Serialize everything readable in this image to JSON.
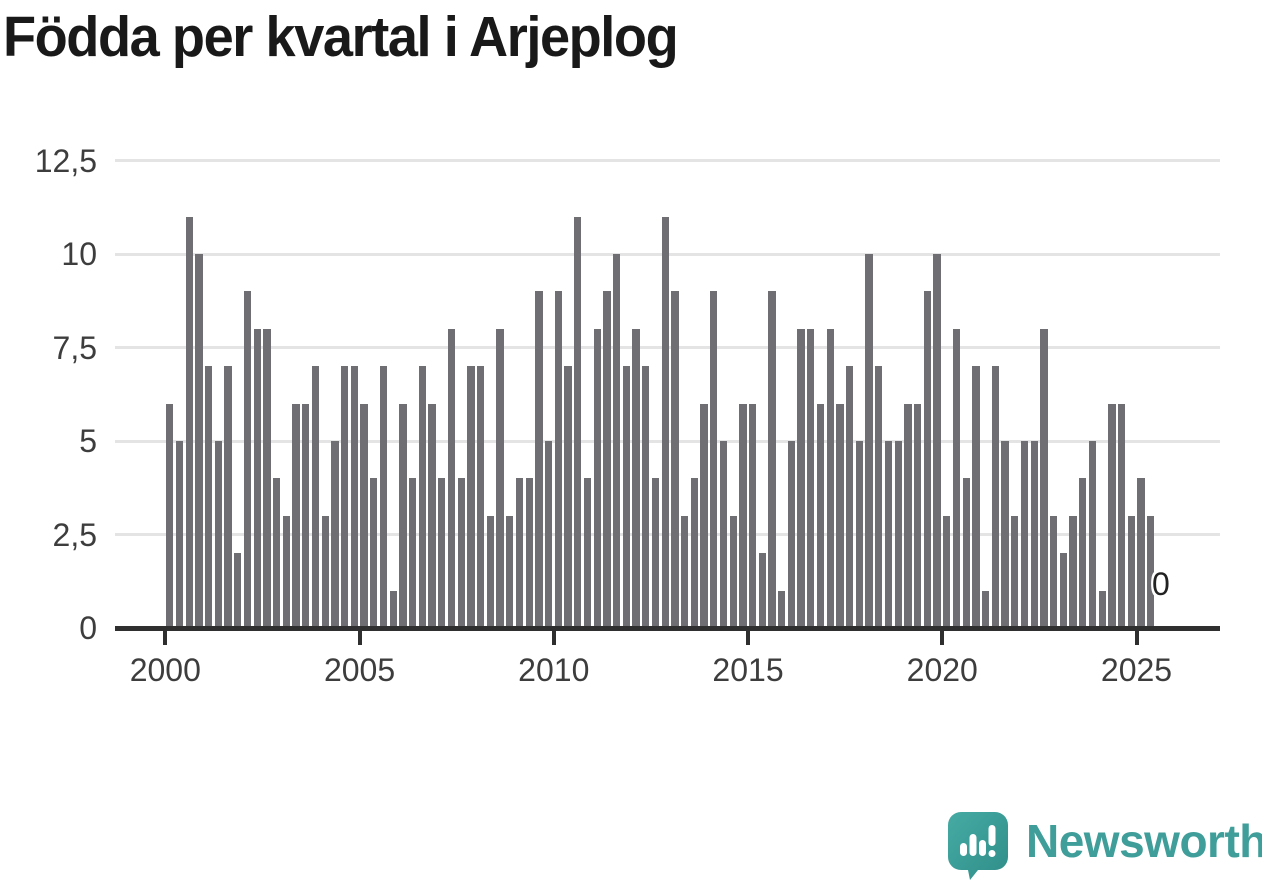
{
  "title": "Födda per kvartal i Arjeplog",
  "colors": {
    "bar": "#6f6f73",
    "grid": "#e4e4e4",
    "axis": "#2f2f2f",
    "tick_label": "#3d3d3d",
    "title": "#191919",
    "logo_teal": "#3f9e99",
    "annotation": "#222222"
  },
  "chart_data": {
    "type": "bar",
    "title": "Födda per kvartal i Arjeplog",
    "xlabel": "",
    "ylabel": "",
    "x_unit": "quarter",
    "x_range": [
      "2000-Q1",
      "2025-Q3"
    ],
    "ylim": [
      0,
      13
    ],
    "grid": true,
    "legend": false,
    "y_ticks": [
      {
        "label": "12,5",
        "value": 12.5
      },
      {
        "label": "10",
        "value": 10
      },
      {
        "label": "7,5",
        "value": 7.5
      },
      {
        "label": "5",
        "value": 5
      },
      {
        "label": "2,5",
        "value": 2.5
      },
      {
        "label": "0",
        "value": 0
      }
    ],
    "x_ticks": [
      {
        "label": "2000",
        "quarter_index": 0
      },
      {
        "label": "2005",
        "quarter_index": 20
      },
      {
        "label": "2010",
        "quarter_index": 40
      },
      {
        "label": "2015",
        "quarter_index": 60
      },
      {
        "label": "2020",
        "quarter_index": 80
      },
      {
        "label": "2025",
        "quarter_index": 100
      }
    ],
    "values": [
      6,
      5,
      11,
      10,
      7,
      5,
      7,
      2,
      9,
      8,
      8,
      4,
      3,
      6,
      6,
      7,
      3,
      5,
      7,
      7,
      6,
      4,
      7,
      1,
      6,
      4,
      7,
      6,
      4,
      8,
      4,
      7,
      7,
      3,
      8,
      3,
      4,
      4,
      9,
      5,
      9,
      7,
      11,
      4,
      8,
      9,
      10,
      7,
      8,
      7,
      4,
      11,
      9,
      3,
      4,
      6,
      9,
      5,
      3,
      6,
      6,
      2,
      9,
      1,
      5,
      8,
      8,
      6,
      8,
      6,
      7,
      5,
      10,
      7,
      5,
      5,
      6,
      6,
      9,
      10,
      3,
      8,
      4,
      7,
      1,
      7,
      5,
      3,
      5,
      5,
      8,
      3,
      2,
      3,
      4,
      5,
      1,
      6,
      6,
      3,
      4,
      3,
      0
    ],
    "last_value_annotation": "0"
  },
  "logo": {
    "name": "Newsworthy"
  }
}
